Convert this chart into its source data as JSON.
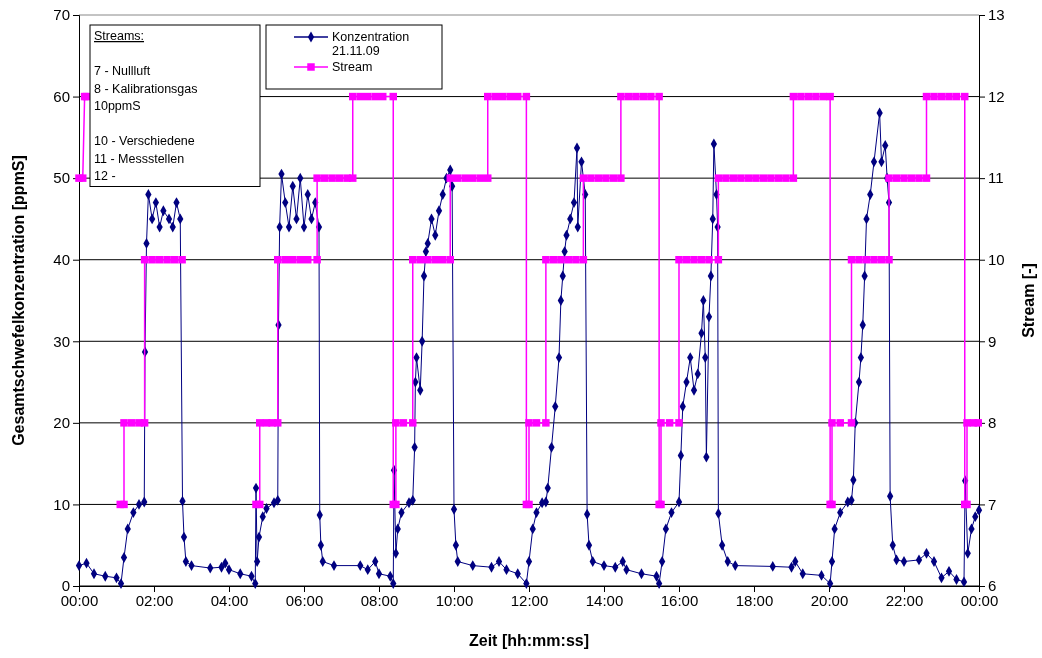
{
  "chart_data": {
    "type": "line",
    "xlabel": "Zeit [hh:mm:ss]",
    "ylabel": "Gesamtschwefelkonzentration [ppmS]",
    "y2label": "Stream [-]",
    "xlim": [
      0,
      24
    ],
    "xticks": [
      {
        "value": 0,
        "label": "00:00"
      },
      {
        "value": 2,
        "label": "02:00"
      },
      {
        "value": 4,
        "label": "04:00"
      },
      {
        "value": 6,
        "label": "06:00"
      },
      {
        "value": 8,
        "label": "08:00"
      },
      {
        "value": 10,
        "label": "10:00"
      },
      {
        "value": 12,
        "label": "12:00"
      },
      {
        "value": 14,
        "label": "14:00"
      },
      {
        "value": 16,
        "label": "16:00"
      },
      {
        "value": 18,
        "label": "18:00"
      },
      {
        "value": 20,
        "label": "20:00"
      },
      {
        "value": 22,
        "label": "22:00"
      },
      {
        "value": 24,
        "label": "00:00"
      }
    ],
    "ylim": [
      0,
      70
    ],
    "yticks": [
      0,
      10,
      20,
      30,
      40,
      50,
      60,
      70
    ],
    "y2lim": [
      6,
      13
    ],
    "y2ticks": [
      6,
      7,
      8,
      9,
      10,
      11,
      12,
      13
    ],
    "grid": "y",
    "legend": "top left",
    "line_style": "solid",
    "annotations": [
      "Streams:\n\n7 - Nullluft\n8 - Kalibrationsgas\n10ppmS\n\n10 - Verschiedene\n11 - Messstellen\n12 -"
    ],
    "series": [
      {
        "name": "Konzentration 21.11.09",
        "color": "#000080",
        "marker": "diamond",
        "x": [
          0,
          0.2,
          0.4,
          0.7,
          1.0,
          1.12,
          1.2,
          1.3,
          1.45,
          1.6,
          1.74,
          1.76,
          1.8,
          1.85,
          1.95,
          2.05,
          2.15,
          2.25,
          2.4,
          2.5,
          2.6,
          2.7,
          2.76,
          2.8,
          2.85,
          3.0,
          3.5,
          3.8,
          3.9,
          4.0,
          4.3,
          4.6,
          4.7,
          4.72,
          4.75,
          4.8,
          4.9,
          5.0,
          5.2,
          5.3,
          5.32,
          5.35,
          5.4,
          5.5,
          5.6,
          5.7,
          5.8,
          5.9,
          6.0,
          6.1,
          6.2,
          6.3,
          6.4,
          6.42,
          6.45,
          6.5,
          6.8,
          7.5,
          7.7,
          7.9,
          8.0,
          8.3,
          8.38,
          8.4,
          8.45,
          8.5,
          8.6,
          8.8,
          8.9,
          8.95,
          8.97,
          9.0,
          9.1,
          9.15,
          9.2,
          9.25,
          9.3,
          9.4,
          9.5,
          9.6,
          9.7,
          9.8,
          9.9,
          9.95,
          10.0,
          10.05,
          10.1,
          10.5,
          11.0,
          11.2,
          11.4,
          11.7,
          11.93,
          12.0,
          12.1,
          12.2,
          12.35,
          12.45,
          12.5,
          12.6,
          12.7,
          12.8,
          12.85,
          12.9,
          12.95,
          13.0,
          13.1,
          13.2,
          13.28,
          13.3,
          13.4,
          13.5,
          13.55,
          13.6,
          13.7,
          14.0,
          14.3,
          14.5,
          14.6,
          15.0,
          15.4,
          15.47,
          15.55,
          15.65,
          15.8,
          16.0,
          16.05,
          16.1,
          16.2,
          16.3,
          16.4,
          16.5,
          16.6,
          16.65,
          16.7,
          16.73,
          16.8,
          16.85,
          16.9,
          16.93,
          17.0,
          17.03,
          17.05,
          17.15,
          17.3,
          17.5,
          18.5,
          19.0,
          19.1,
          19.3,
          19.8,
          20.03,
          20.08,
          20.15,
          20.3,
          20.5,
          20.6,
          20.65,
          20.7,
          20.8,
          20.85,
          20.9,
          20.95,
          21.0,
          21.1,
          21.2,
          21.35,
          21.4,
          21.5,
          21.55,
          21.6,
          21.63,
          21.7,
          21.8,
          22.0,
          22.4,
          22.6,
          22.8,
          23.0,
          23.2,
          23.4,
          23.6,
          23.63,
          23.7,
          23.8,
          23.9,
          24.0
        ],
        "values": [
          2.5,
          2.8,
          1.5,
          1.2,
          1.0,
          0.3,
          3.5,
          7,
          9,
          10,
          10.3,
          28.7,
          42,
          48,
          45,
          47,
          44,
          46,
          45,
          44,
          47,
          45,
          10.4,
          6,
          3,
          2.5,
          2.2,
          2.3,
          2.8,
          2.0,
          1.5,
          1.2,
          0.3,
          12,
          3,
          6,
          8.5,
          9.5,
          10.2,
          10.5,
          32,
          44,
          50.5,
          47,
          44,
          49,
          45,
          50,
          44,
          48,
          45,
          47,
          44,
          8.7,
          5,
          3,
          2.5,
          2.5,
          2.0,
          3,
          1.5,
          1.2,
          0.3,
          14.2,
          4,
          7,
          9,
          10.2,
          10.5,
          17,
          25,
          28,
          24,
          30,
          38,
          41,
          42,
          45,
          43,
          46,
          48,
          50,
          51,
          49,
          9.4,
          5,
          3,
          2.5,
          2.3,
          3,
          2.0,
          1.5,
          0.3,
          3,
          7,
          9,
          10.2,
          10.3,
          12,
          17,
          22,
          28,
          35,
          38,
          41,
          43,
          45,
          47,
          53.7,
          44,
          52,
          48,
          8.8,
          5,
          3,
          2.5,
          2.3,
          3,
          2,
          1.5,
          1.2,
          0.3,
          3,
          7,
          9,
          10.3,
          16,
          22,
          25,
          28,
          24,
          26,
          31,
          35,
          28,
          15.8,
          33,
          38,
          45,
          54.2,
          48,
          44,
          8.9,
          5,
          3,
          2.5,
          2.4,
          2.3,
          3,
          1.5,
          1.3,
          0.3,
          3,
          7,
          9,
          10.3,
          10.5,
          13,
          20,
          25,
          28,
          32,
          38,
          45,
          48,
          52,
          58,
          52,
          54,
          50,
          47,
          11,
          5,
          3.2,
          3,
          3.2,
          4,
          3,
          1.0,
          1.8,
          0.8,
          0.5,
          12.9,
          4,
          7,
          8.5,
          9.3
        ]
      },
      {
        "name": "Stream",
        "color": "#ff00ff",
        "marker": "square",
        "axis": "y2",
        "x": [
          0,
          0.1,
          0.15,
          0.2,
          0.6,
          1.1,
          1.2,
          1.2,
          1.4,
          1.6,
          1.75,
          1.75,
          1.95,
          2.15,
          2.35,
          2.55,
          2.75,
          3.5,
          4.72,
          4.82,
          4.82,
          5.0,
          5.15,
          5.3,
          5.3,
          5.5,
          5.7,
          5.9,
          6.1,
          6.35,
          6.35,
          6.55,
          6.75,
          6.95,
          7.15,
          7.3,
          7.3,
          7.5,
          7.7,
          7.9,
          8.1,
          8.38,
          8.38,
          8.45,
          8.45,
          8.65,
          8.9,
          8.9,
          9.1,
          9.3,
          9.5,
          9.7,
          9.9,
          9.9,
          10.1,
          10.3,
          10.5,
          10.7,
          10.9,
          10.9,
          11.1,
          11.3,
          11.5,
          11.7,
          11.93,
          11.93,
          12.0,
          12.0,
          12.2,
          12.45,
          12.45,
          12.65,
          12.85,
          13.05,
          13.25,
          13.45,
          13.45,
          13.65,
          13.85,
          14.05,
          14.25,
          14.45,
          14.45,
          14.65,
          14.85,
          15.05,
          15.25,
          15.47,
          15.47,
          15.52,
          15.52,
          15.75,
          16.0,
          16.0,
          16.2,
          16.4,
          16.6,
          16.8,
          17.05,
          17.05,
          17.25,
          17.45,
          17.65,
          17.85,
          18.05,
          18.25,
          18.45,
          18.65,
          18.85,
          19.05,
          19.05,
          19.25,
          19.45,
          19.65,
          19.85,
          20.03,
          20.03,
          20.08,
          20.08,
          20.3,
          20.6,
          20.6,
          20.8,
          21.0,
          21.2,
          21.4,
          21.6,
          21.6,
          21.8,
          22.0,
          22.2,
          22.4,
          22.6,
          22.6,
          22.8,
          23.0,
          23.2,
          23.4,
          23.62,
          23.62,
          23.68,
          23.68,
          23.85,
          23.98
        ],
        "values": [
          11,
          11,
          12,
          12,
          null,
          7,
          7,
          8,
          8,
          8,
          8,
          10,
          10,
          10,
          10,
          10,
          10,
          null,
          7,
          7,
          8,
          8,
          8,
          8,
          10,
          10,
          10,
          10,
          10,
          10,
          11,
          11,
          11,
          11,
          11,
          11,
          12,
          12,
          12,
          12,
          12,
          12,
          7,
          7,
          8,
          8,
          8,
          10,
          10,
          10,
          10,
          10,
          10,
          11,
          11,
          11,
          11,
          11,
          11,
          12,
          12,
          12,
          12,
          12,
          12,
          7,
          7,
          8,
          8,
          8,
          10,
          10,
          10,
          10,
          10,
          10,
          11,
          11,
          11,
          11,
          11,
          11,
          12,
          12,
          12,
          12,
          12,
          12,
          7,
          7,
          8,
          8,
          8,
          10,
          10,
          10,
          10,
          10,
          10,
          11,
          11,
          11,
          11,
          11,
          11,
          11,
          11,
          11,
          11,
          11,
          12,
          12,
          12,
          12,
          12,
          12,
          7,
          7,
          8,
          8,
          8,
          10,
          10,
          10,
          10,
          10,
          10,
          11,
          11,
          11,
          11,
          11,
          11,
          12,
          12,
          12,
          12,
          12,
          12,
          7,
          7,
          8,
          8,
          8
        ]
      }
    ]
  }
}
